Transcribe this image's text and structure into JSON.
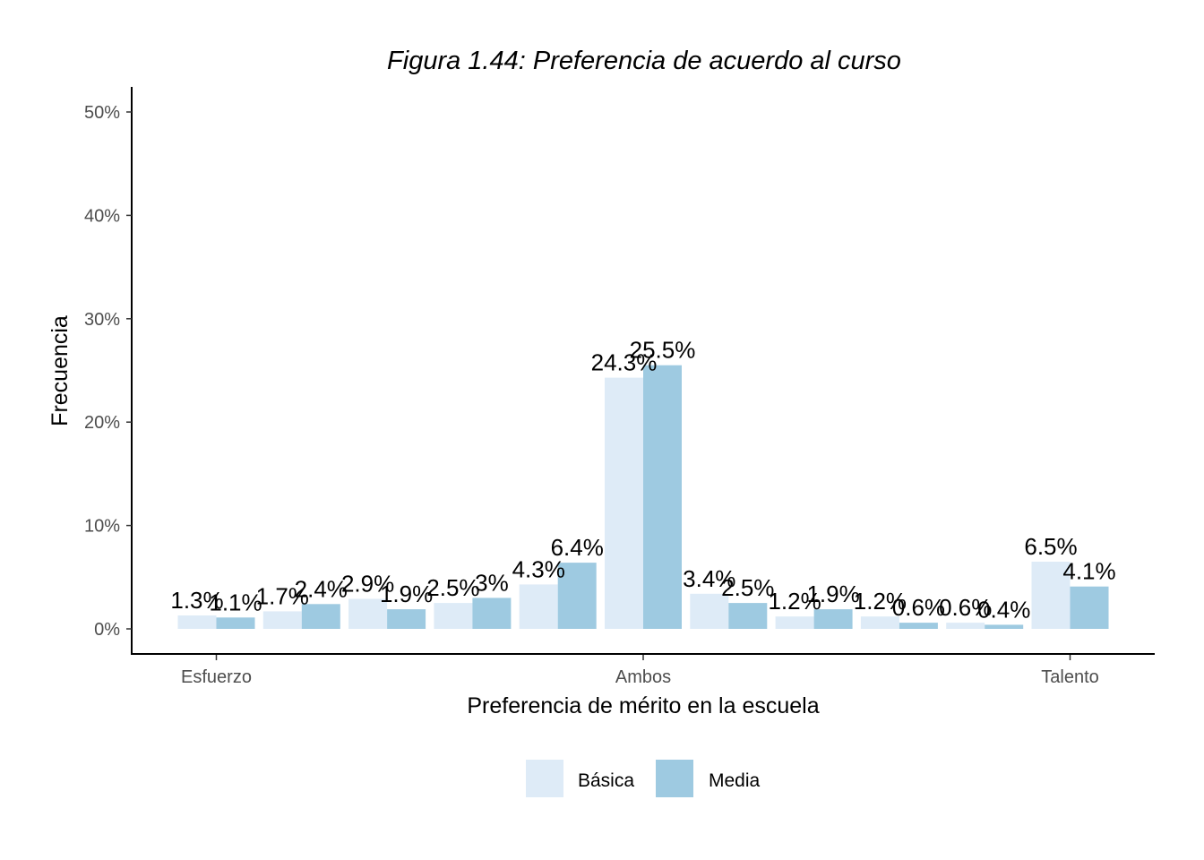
{
  "chart_data": {
    "type": "bar",
    "title": "Figura 1.44: Preferencia de acuerdo al curso",
    "xlabel": "Preferencia de mérito en la escuela",
    "ylabel": "Frecuencia",
    "ylim": [
      0,
      52
    ],
    "yticks": [
      0,
      10,
      20,
      30,
      40,
      50
    ],
    "ytick_labels": [
      "0%",
      "10%",
      "20%",
      "30%",
      "40%",
      "50%"
    ],
    "x_tick_labels": [
      {
        "position": 1,
        "label": "Esfuerzo"
      },
      {
        "position": 6,
        "label": "Ambos"
      },
      {
        "position": 11,
        "label": "Talento"
      }
    ],
    "categories": [
      1,
      2,
      3,
      4,
      5,
      6,
      7,
      8,
      9,
      10,
      11
    ],
    "series": [
      {
        "name": "Básica",
        "color": "#deebf7",
        "values": [
          1.3,
          1.7,
          2.9,
          2.5,
          4.3,
          24.3,
          3.4,
          1.2,
          1.2,
          0.6,
          6.5
        ],
        "labels": [
          "1.3%",
          "1.7%",
          "2.9%",
          "2.5%",
          "4.3%",
          "24.3%",
          "3.4%",
          "1.2%",
          "1.2%",
          "0.6%",
          "6.5%"
        ]
      },
      {
        "name": "Media",
        "color": "#9ecae1",
        "values": [
          1.1,
          2.4,
          1.9,
          3.0,
          6.4,
          25.5,
          2.5,
          1.9,
          0.6,
          0.4,
          4.1
        ],
        "labels": [
          "1.1%",
          "2.4%",
          "1.9%",
          "3%",
          "6.4%",
          "25.5%",
          "2.5%",
          "1.9%",
          "0.6%",
          "0.4%",
          "4.1%"
        ]
      }
    ],
    "grid": false,
    "legend_position": "bottom"
  }
}
